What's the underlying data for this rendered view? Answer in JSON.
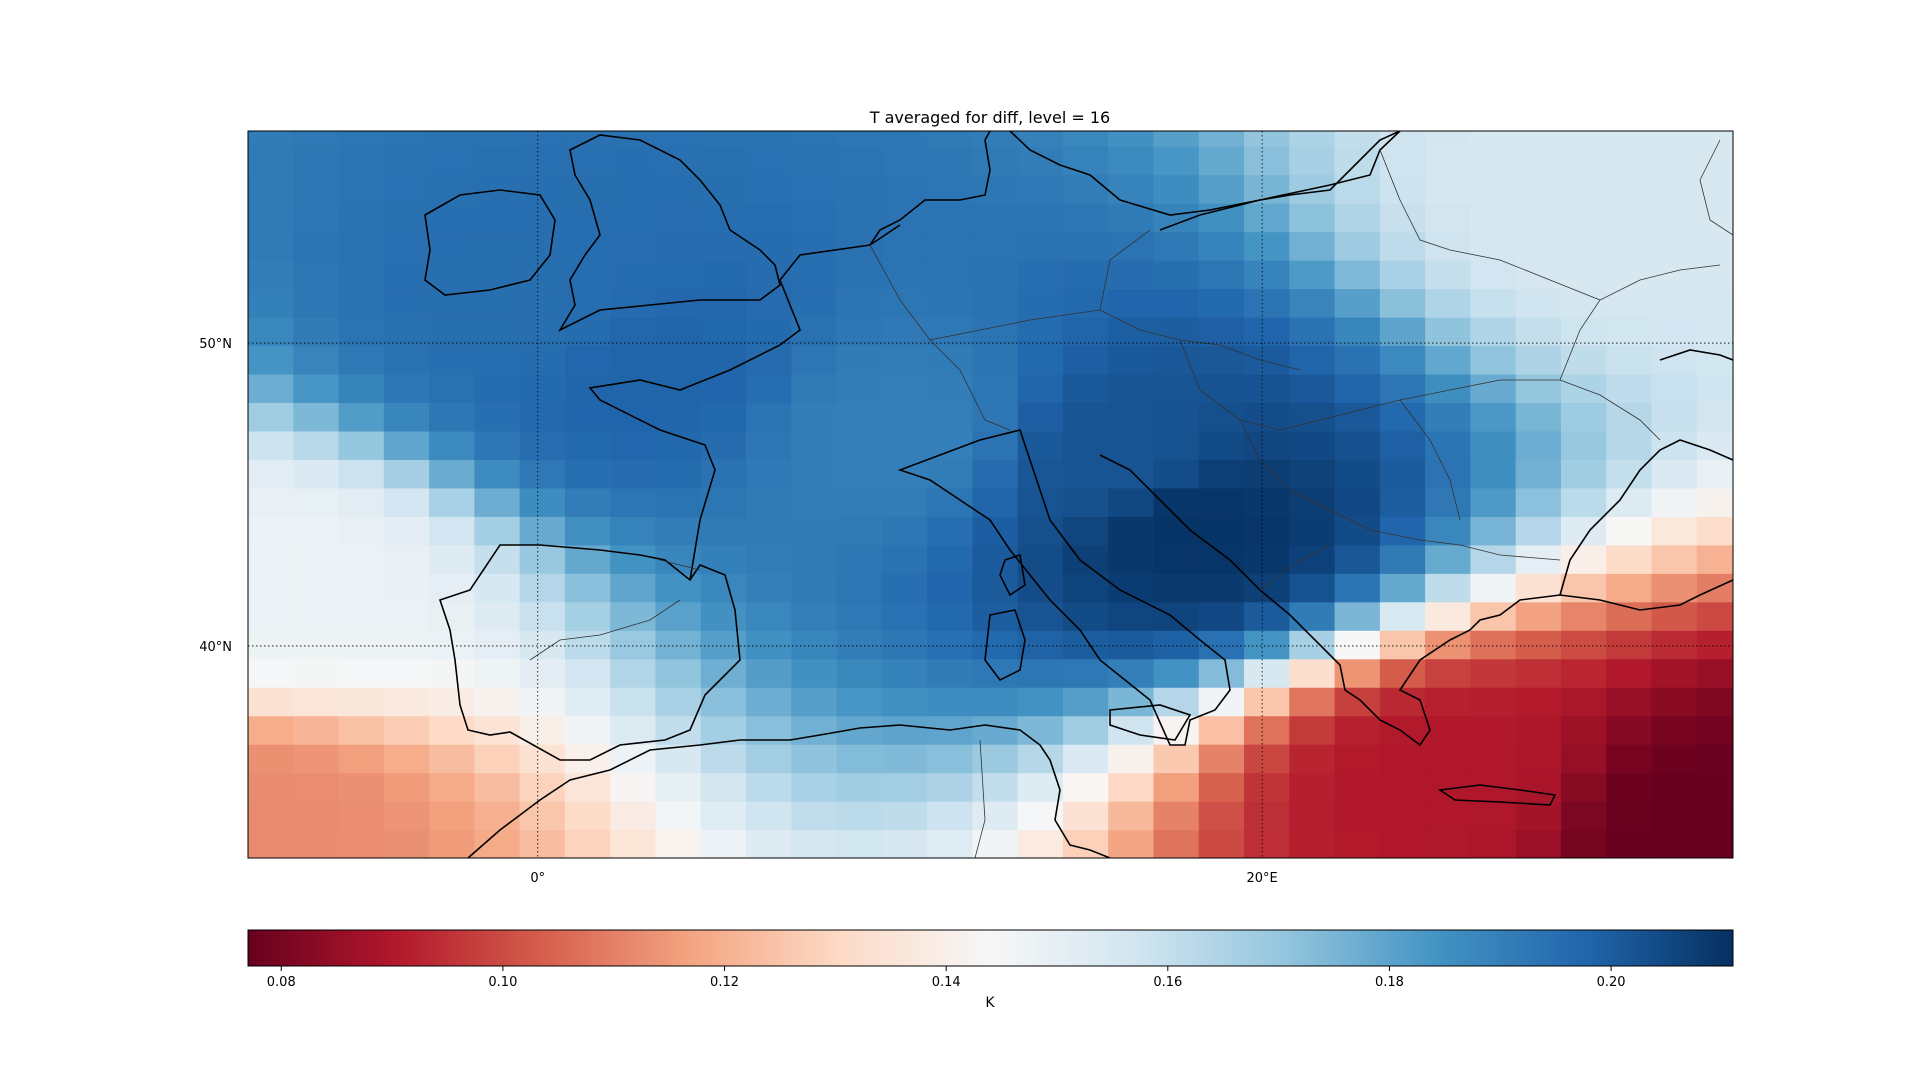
{
  "title": "T averaged for diff, level = 16",
  "map": {
    "lon_range": [
      -8,
      33
    ],
    "lat_range": [
      33,
      57
    ],
    "lon_ticks": [
      {
        "value": 0,
        "label": "0°"
      },
      {
        "value": 20,
        "label": "20°E"
      }
    ],
    "lat_ticks": [
      {
        "value": 40,
        "label": "40°N"
      },
      {
        "value": 50,
        "label": "50°N"
      }
    ],
    "gridlines": "dotted",
    "projection": "equirectangular"
  },
  "colorbar": {
    "label": "K",
    "range": [
      0.077,
      0.211
    ],
    "cmap": "RdBu",
    "orientation": "horizontal",
    "position": "bottom",
    "ticks": [
      {
        "value": 0.08,
        "label": "0.08"
      },
      {
        "value": 0.1,
        "label": "0.10"
      },
      {
        "value": 0.12,
        "label": "0.12"
      },
      {
        "value": 0.14,
        "label": "0.14"
      },
      {
        "value": 0.16,
        "label": "0.16"
      },
      {
        "value": 0.18,
        "label": "0.18"
      },
      {
        "value": 0.2,
        "label": "0.20"
      }
    ],
    "colors": [
      "#67001f",
      "#b2182b",
      "#d6604d",
      "#f4a582",
      "#fddbc7",
      "#f7f7f7",
      "#d1e5f0",
      "#92c5de",
      "#4393c3",
      "#2166ac",
      "#053061"
    ]
  },
  "chart_data": {
    "type": "heatmap",
    "title": "T averaged for diff, level = 16",
    "colorbar_label": "K",
    "value_range": [
      0.077,
      0.211
    ],
    "x_ticks": [
      "0°",
      "20°E"
    ],
    "y_ticks": [
      "40°N",
      "50°N"
    ],
    "field_description_anchors": [
      {
        "lon": 0,
        "lat": 51,
        "value": 0.195
      },
      {
        "lon": 3,
        "lat": 49,
        "value": 0.198
      },
      {
        "lon": 18,
        "lat": 44,
        "value": 0.21
      },
      {
        "lon": 16,
        "lat": 46,
        "value": 0.202
      },
      {
        "lon": 10,
        "lat": 47,
        "value": 0.19
      },
      {
        "lon": -7,
        "lat": 42,
        "value": 0.148
      },
      {
        "lon": 32,
        "lat": 34,
        "value": 0.077
      },
      {
        "lon": 25,
        "lat": 35.5,
        "value": 0.09
      },
      {
        "lon": -8,
        "lat": 34,
        "value": 0.112
      },
      {
        "lon": 30,
        "lat": 55,
        "value": 0.155
      }
    ]
  }
}
